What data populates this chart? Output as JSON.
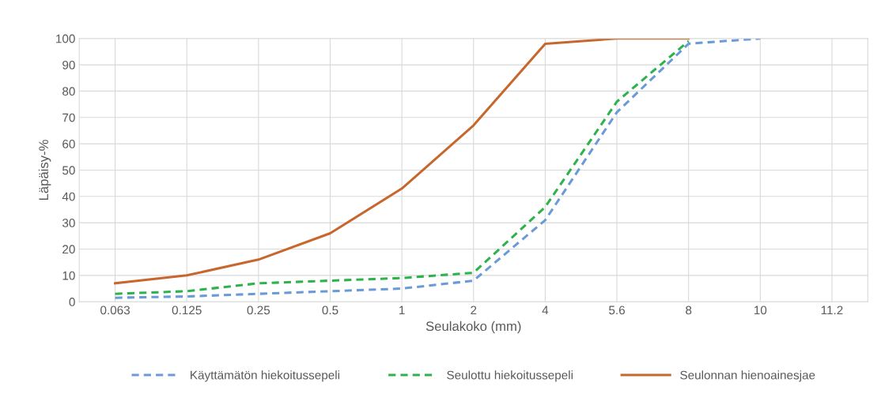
{
  "chart_data": {
    "type": "line",
    "xlabel": "Seulakoko (mm)",
    "ylabel": "Läpäisy-%",
    "categories": [
      "0.063",
      "0.125",
      "0.25",
      "0.5",
      "1",
      "2",
      "4",
      "5.6",
      "8",
      "10",
      "11.2"
    ],
    "ylim": [
      0,
      100
    ],
    "yticks": [
      0,
      10,
      20,
      30,
      40,
      50,
      60,
      70,
      80,
      90,
      100
    ],
    "grid": true,
    "legend": "bottom",
    "marker": "none",
    "series": [
      {
        "name": "Käyttämätön hiekoitussepeli",
        "color": "#6a9bd8",
        "line_style": "dashed",
        "values": [
          1.5,
          2,
          3,
          4,
          5,
          8,
          31,
          72,
          98,
          100,
          null
        ]
      },
      {
        "name": "Seulottu hiekoitussepeli",
        "color": "#2eb34c",
        "line_style": "dashed",
        "values": [
          3,
          4,
          7,
          8,
          9,
          11,
          36,
          76,
          99,
          null,
          null
        ]
      },
      {
        "name": "Seulonnan hienoainesjae",
        "color": "#c8672d",
        "line_style": "solid",
        "values": [
          7,
          10,
          16,
          26,
          43,
          67,
          98,
          100,
          100,
          null,
          null
        ]
      }
    ]
  }
}
